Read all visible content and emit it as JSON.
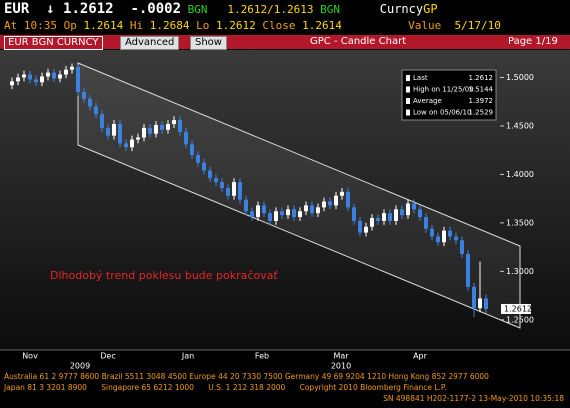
{
  "header": {
    "ticker": "EUR",
    "price": "↓ 1.2612",
    "change": "-.0002",
    "source1": "BGN",
    "bid_ask": "1.2612/1.2613",
    "source2": "BGN",
    "security": "Curncy",
    "function": "GP"
  },
  "quote": {
    "time": "At 10:35",
    "open_label": "Op",
    "open": "1.2614",
    "high_label": "Hi",
    "high": "1.2684",
    "low_label": "Lo",
    "low": "1.2612",
    "close_label": "Close",
    "close": "1.2614",
    "value_label": "Value",
    "date": "5/17/10"
  },
  "toolbar": {
    "security_box": "EUR BGN CURNCY",
    "button1": "Advanced",
    "button2": "Show",
    "title": "GPC - Candle Chart",
    "page": "Page 1/19"
  },
  "chart_data": {
    "type": "candlestick",
    "categories": [
      null,
      null,
      null,
      null,
      null,
      null,
      null,
      null,
      null,
      null,
      null,
      null,
      null,
      null,
      null,
      null,
      null,
      null,
      null,
      null,
      null,
      null,
      null,
      null,
      null,
      null,
      null,
      null,
      null,
      null,
      null,
      null,
      null,
      null,
      null,
      null,
      null,
      null,
      null,
      null,
      null,
      null,
      null,
      null,
      null,
      null,
      null,
      null,
      null,
      null,
      null,
      null,
      null,
      null,
      null,
      null,
      null,
      null,
      null,
      null,
      null,
      null,
      null,
      null,
      null,
      null,
      null,
      null,
      null,
      null,
      null,
      null,
      null,
      null,
      null,
      null,
      null,
      null,
      null,
      null
    ],
    "open": [
      1.492,
      1.496,
      1.5,
      1.503,
      1.498,
      1.495,
      1.501,
      1.505,
      1.499,
      1.503,
      1.508,
      1.511,
      1.485,
      1.478,
      1.47,
      1.462,
      1.448,
      1.44,
      1.452,
      1.432,
      1.428,
      1.436,
      1.438,
      1.448,
      1.442,
      1.451,
      1.446,
      1.452,
      1.456,
      1.444,
      1.431,
      1.42,
      1.412,
      1.404,
      1.396,
      1.392,
      1.386,
      1.378,
      1.392,
      1.374,
      1.362,
      1.356,
      1.368,
      1.36,
      1.352,
      1.362,
      1.358,
      1.364,
      1.356,
      1.362,
      1.368,
      1.36,
      1.366,
      1.372,
      1.368,
      1.378,
      1.382,
      1.366,
      1.352,
      1.34,
      1.346,
      1.355,
      1.352,
      1.36,
      1.352,
      1.364,
      1.358,
      1.37,
      1.364,
      1.356,
      1.344,
      1.336,
      1.33,
      1.342,
      1.336,
      1.332,
      1.318,
      1.284,
      1.262,
      1.272
    ],
    "high": [
      1.5,
      1.504,
      1.507,
      1.507,
      1.502,
      1.505,
      1.509,
      1.509,
      1.507,
      1.512,
      1.5144,
      1.513,
      1.489,
      1.482,
      1.474,
      1.466,
      1.452,
      1.456,
      1.456,
      1.436,
      1.44,
      1.442,
      1.452,
      1.452,
      1.455,
      1.455,
      1.456,
      1.46,
      1.46,
      1.448,
      1.435,
      1.424,
      1.416,
      1.408,
      1.4,
      1.396,
      1.39,
      1.396,
      1.396,
      1.378,
      1.366,
      1.372,
      1.372,
      1.364,
      1.366,
      1.366,
      1.368,
      1.368,
      1.366,
      1.372,
      1.372,
      1.37,
      1.376,
      1.376,
      1.382,
      1.386,
      1.386,
      1.37,
      1.356,
      1.35,
      1.359,
      1.359,
      1.364,
      1.364,
      1.368,
      1.368,
      1.374,
      1.374,
      1.368,
      1.36,
      1.348,
      1.34,
      1.346,
      1.346,
      1.34,
      1.336,
      1.322,
      1.288,
      1.31,
      1.276
    ],
    "low": [
      1.488,
      1.492,
      1.496,
      1.494,
      1.491,
      1.491,
      1.497,
      1.495,
      1.495,
      1.499,
      1.504,
      1.481,
      1.474,
      1.466,
      1.458,
      1.444,
      1.436,
      1.436,
      1.428,
      1.424,
      1.424,
      1.432,
      1.434,
      1.438,
      1.438,
      1.442,
      1.442,
      1.448,
      1.44,
      1.427,
      1.416,
      1.408,
      1.4,
      1.392,
      1.388,
      1.382,
      1.374,
      1.374,
      1.37,
      1.358,
      1.352,
      1.352,
      1.356,
      1.348,
      1.348,
      1.354,
      1.354,
      1.352,
      1.352,
      1.358,
      1.356,
      1.356,
      1.362,
      1.364,
      1.364,
      1.374,
      1.362,
      1.348,
      1.336,
      1.336,
      1.342,
      1.348,
      1.348,
      1.348,
      1.348,
      1.354,
      1.354,
      1.36,
      1.352,
      1.34,
      1.332,
      1.326,
      1.326,
      1.332,
      1.328,
      1.314,
      1.28,
      1.2529,
      1.258,
      1.257
    ],
    "close": [
      1.496,
      1.5,
      1.503,
      1.498,
      1.495,
      1.501,
      1.505,
      1.499,
      1.503,
      1.508,
      1.511,
      1.485,
      1.478,
      1.47,
      1.462,
      1.448,
      1.44,
      1.452,
      1.432,
      1.428,
      1.436,
      1.438,
      1.448,
      1.442,
      1.451,
      1.446,
      1.452,
      1.456,
      1.444,
      1.431,
      1.42,
      1.412,
      1.404,
      1.396,
      1.392,
      1.386,
      1.378,
      1.392,
      1.374,
      1.362,
      1.356,
      1.368,
      1.36,
      1.352,
      1.362,
      1.358,
      1.364,
      1.356,
      1.362,
      1.368,
      1.36,
      1.366,
      1.372,
      1.368,
      1.378,
      1.382,
      1.366,
      1.352,
      1.34,
      1.346,
      1.355,
      1.352,
      1.36,
      1.352,
      1.364,
      1.358,
      1.37,
      1.364,
      1.356,
      1.344,
      1.336,
      1.33,
      1.342,
      1.336,
      1.332,
      1.318,
      1.284,
      1.262,
      1.272,
      1.2612
    ],
    "up_color": "#ffffff",
    "down_color": "#3b82e0",
    "ylim": [
      1.223,
      1.518
    ],
    "yticks": [
      {
        "value": 1.5,
        "label": "1.5000"
      },
      {
        "value": 1.45,
        "label": "1.4500"
      },
      {
        "value": 1.4,
        "label": "1.4000"
      },
      {
        "value": 1.35,
        "label": "1.3500"
      },
      {
        "value": 1.3,
        "label": "1.3000"
      },
      {
        "value": 1.25,
        "label": "1.2500"
      }
    ],
    "x_labels": [
      "Nov",
      "Dec",
      "Jan",
      "Feb",
      "Mar",
      "Apr"
    ],
    "x_year_labels": [
      "2009",
      "2010"
    ],
    "last_price": 1.2612,
    "legend": [
      {
        "label": "Last",
        "value": 1.2612
      },
      {
        "label": "High on 11/25/09",
        "value": 1.5144
      },
      {
        "label": "Average",
        "value": 1.3972
      },
      {
        "label": "Low on 05/06/10",
        "value": 1.2529
      }
    ],
    "annotation": "Dlhodobý trend poklesu bude pokračovať"
  },
  "footer": [
    "Australia 61 2 9777 8600 Brazil 5511 3048 4500 Europe 44 20 7330 7500 Germany 49 69 9204 1210 Hong Kong 852 2977 6000",
    "Japan 81 3 3201 8900      Singapore 65 6212 1000      U.S. 1 212 318 2000      Copyright 2010 Bloomberg Finance L.P.",
    "SN 498841 H202-1177-2 13-May-2010 10:35:18"
  ]
}
